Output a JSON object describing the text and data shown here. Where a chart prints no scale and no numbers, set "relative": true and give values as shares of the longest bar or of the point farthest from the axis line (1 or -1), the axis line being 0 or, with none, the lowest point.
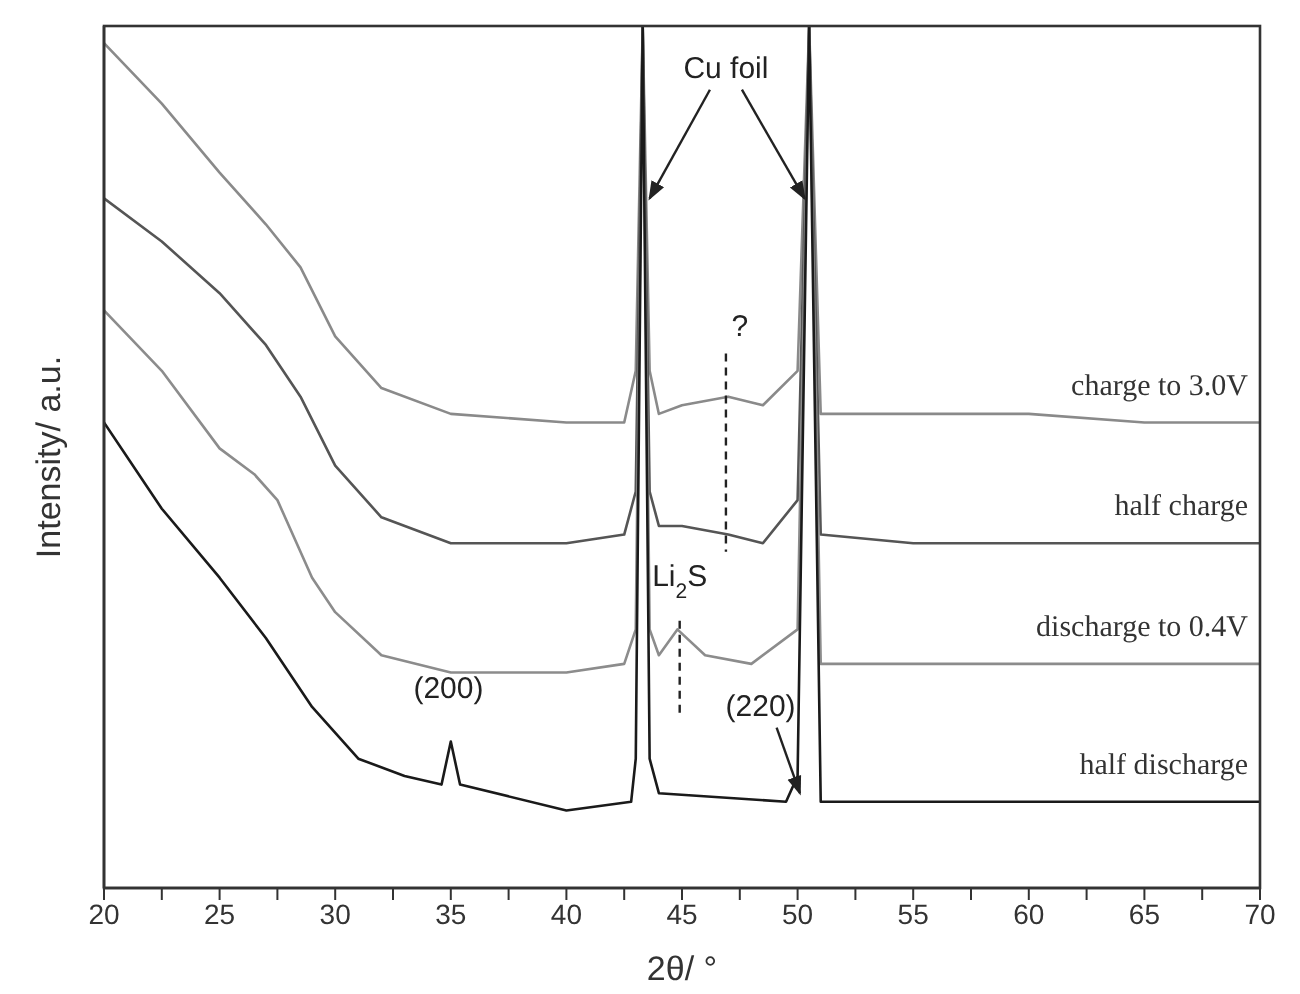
{
  "chart_data": {
    "type": "line",
    "relative": true,
    "xlabel": "2θ/ °",
    "ylabel": "Intensity/ a.u.",
    "xlim": [
      20,
      70
    ],
    "xticks": [
      20,
      {
        "value": 22.5,
        "label": null
      },
      25,
      {
        "value": 27.5,
        "label": null
      },
      30,
      {
        "value": 32.5,
        "label": null
      },
      35,
      {
        "value": 37.5,
        "label": null
      },
      40,
      {
        "value": 42.5,
        "label": null
      },
      45,
      {
        "value": 47.5,
        "label": null
      },
      50,
      {
        "value": 52.5,
        "label": null
      },
      55,
      {
        "value": 57.5,
        "label": null
      },
      60,
      {
        "value": 62.5,
        "label": null
      },
      65,
      {
        "value": 67.5,
        "label": null
      },
      70
    ],
    "series": [
      {
        "name": "charge to 3.0V",
        "color": "#8a8a8a",
        "x": [
          20,
          22.5,
          25,
          27,
          28.5,
          30,
          32,
          35,
          40,
          42.5,
          43,
          43.3,
          43.6,
          44,
          45,
          47,
          48.5,
          50,
          50.5,
          51,
          55,
          60,
          65,
          70
        ],
        "values": [
          0.98,
          0.91,
          0.83,
          0.77,
          0.72,
          0.64,
          0.58,
          0.55,
          0.54,
          0.54,
          0.6,
          1,
          0.6,
          0.55,
          0.56,
          0.57,
          0.56,
          0.6,
          1,
          0.55,
          0.55,
          0.55,
          0.54,
          0.54
        ]
      },
      {
        "name": "half charge",
        "color": "#555555",
        "x": [
          20,
          22.5,
          25,
          27,
          28.5,
          30,
          32,
          35,
          40,
          42.5,
          43,
          43.3,
          43.6,
          44,
          45,
          47,
          48.5,
          50,
          50.5,
          51,
          55,
          60,
          65,
          70
        ],
        "values": [
          0.8,
          0.75,
          0.69,
          0.63,
          0.57,
          0.49,
          0.43,
          0.4,
          0.4,
          0.41,
          0.46,
          1,
          0.46,
          0.42,
          0.42,
          0.41,
          0.4,
          0.45,
          1,
          0.41,
          0.4,
          0.4,
          0.4,
          0.4
        ]
      },
      {
        "name": "discharge to 0.4V",
        "color": "#8c8c8c",
        "x": [
          20,
          22.5,
          25,
          26.5,
          27.5,
          29,
          30,
          32,
          35,
          40,
          42.5,
          43,
          43.3,
          43.6,
          44,
          44.8,
          46,
          48,
          50,
          50.5,
          51,
          55,
          60,
          65,
          70
        ],
        "values": [
          0.67,
          0.6,
          0.51,
          0.48,
          0.45,
          0.36,
          0.32,
          0.27,
          0.25,
          0.25,
          0.26,
          0.3,
          1,
          0.3,
          0.27,
          0.3,
          0.27,
          0.26,
          0.3,
          1,
          0.26,
          0.26,
          0.26,
          0.26,
          0.26
        ]
      },
      {
        "name": "half discharge",
        "color": "#1a1a1a",
        "x": [
          20,
          22.5,
          25,
          27,
          29,
          31,
          33,
          34.6,
          35,
          35.4,
          40,
          42.8,
          43,
          43.3,
          43.6,
          44,
          49.5,
          50,
          50.5,
          51,
          55,
          60,
          65,
          70
        ],
        "values": [
          0.54,
          0.44,
          0.36,
          0.29,
          0.21,
          0.15,
          0.13,
          0.12,
          0.17,
          0.12,
          0.09,
          0.1,
          0.15,
          1,
          0.15,
          0.11,
          0.1,
          0.13,
          1,
          0.1,
          0.1,
          0.1,
          0.1,
          0.1
        ]
      }
    ],
    "annotations": [
      "Cu foil",
      "?",
      "Li$_{2}$S",
      "(200)",
      "(220)"
    ]
  }
}
